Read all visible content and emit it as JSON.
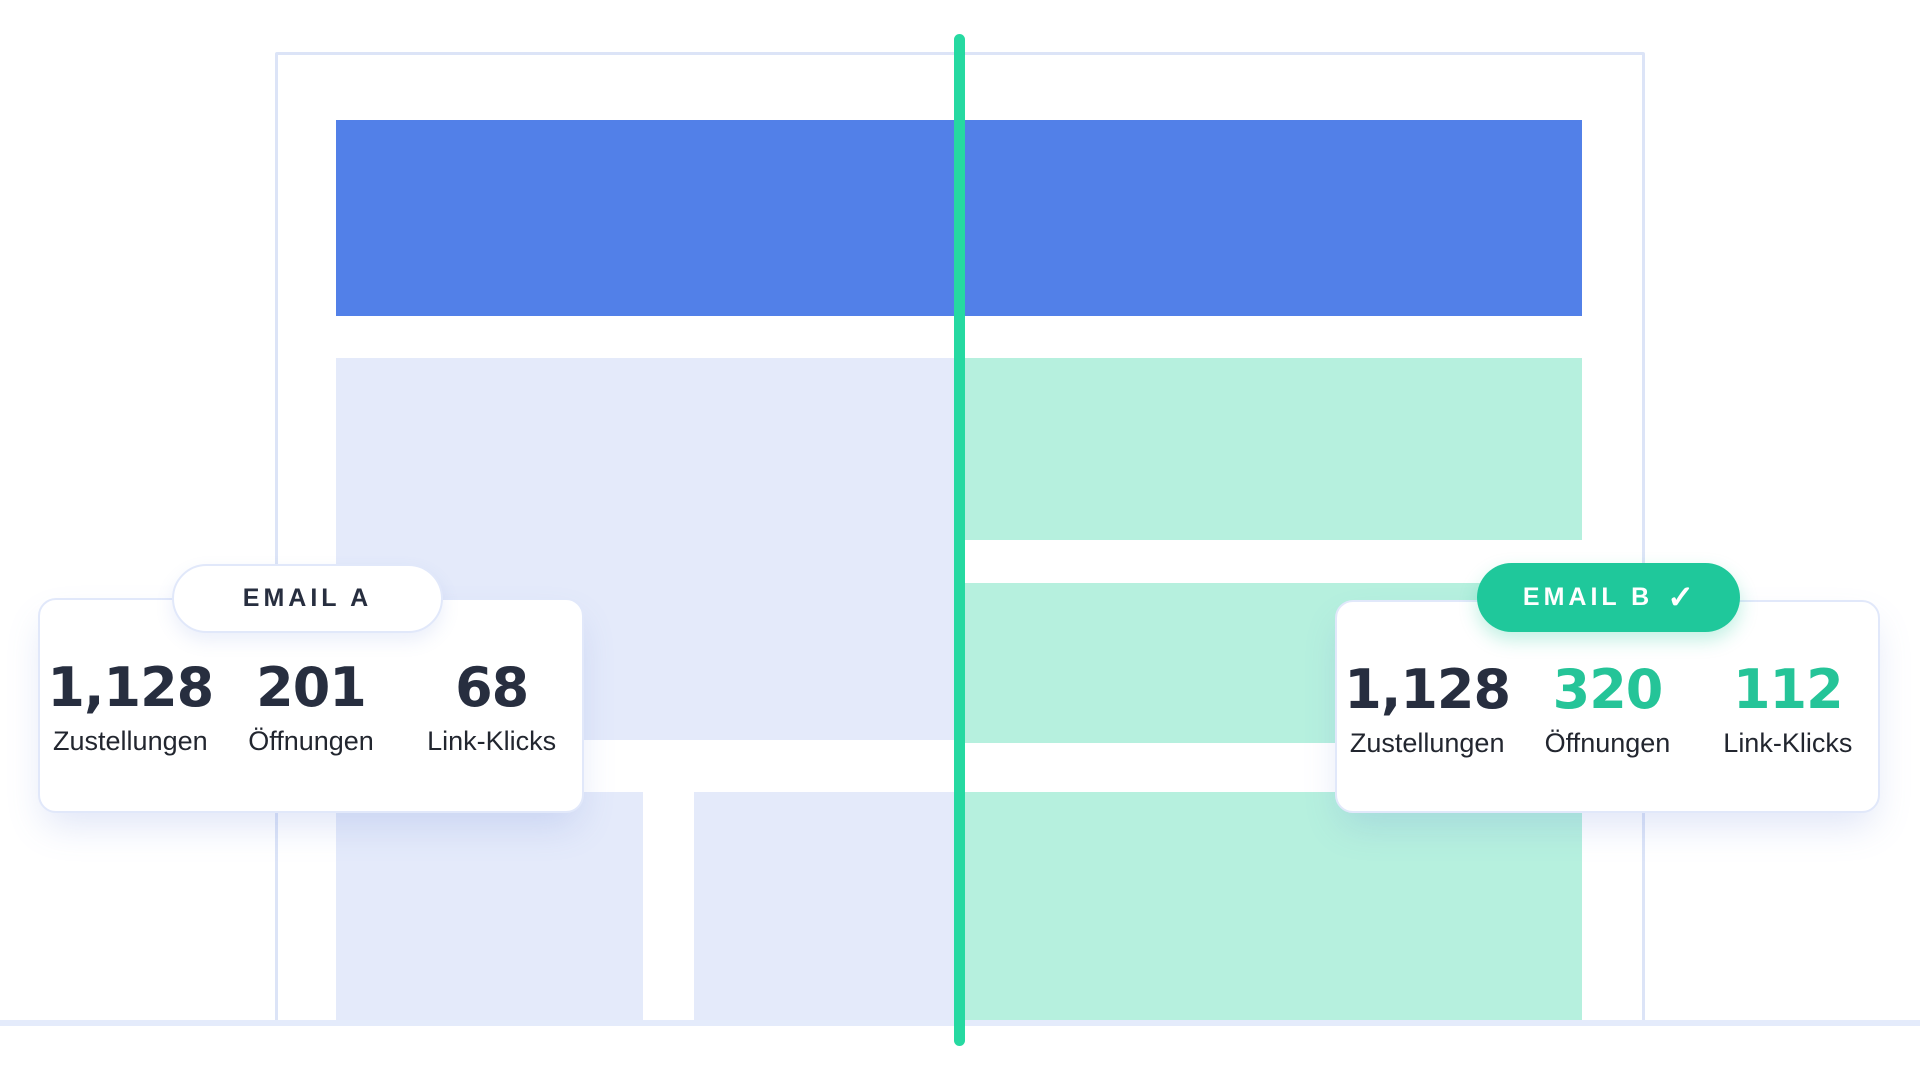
{
  "colors": {
    "page-bg": "#ffffff",
    "frame-border": "#dce4f7",
    "header-blue": "#5280e8",
    "variant-a-fill": "#e4eafa",
    "variant-b-fill": "#b6f0de",
    "divider-teal": "#26d9a1",
    "badge-winner-bg": "#1fc89b",
    "badge-winner-text": "#ffffff",
    "badge-default-text": "#272e3f",
    "stat-dark": "#272e3f",
    "stat-highlight": "#25c498",
    "label-text": "#22262f",
    "card-border": "#e1e8fa",
    "bottom-rule": "#e4ebfb"
  },
  "cards": {
    "email_a": {
      "badge": "EMAIL A",
      "winner": false,
      "stats": [
        {
          "value": "1,128",
          "label": "Zustellungen",
          "highlight": false
        },
        {
          "value": "201",
          "label": "Öffnungen",
          "highlight": false
        },
        {
          "value": "68",
          "label": "Link-Klicks",
          "highlight": false
        }
      ]
    },
    "email_b": {
      "badge": "EMAIL B",
      "winner": true,
      "check_icon": "✓",
      "stats": [
        {
          "value": "1,128",
          "label": "Zustellungen",
          "highlight": false
        },
        {
          "value": "320",
          "label": "Öffnungen",
          "highlight": true
        },
        {
          "value": "112",
          "label": "Link-Klicks",
          "highlight": true
        }
      ]
    }
  }
}
